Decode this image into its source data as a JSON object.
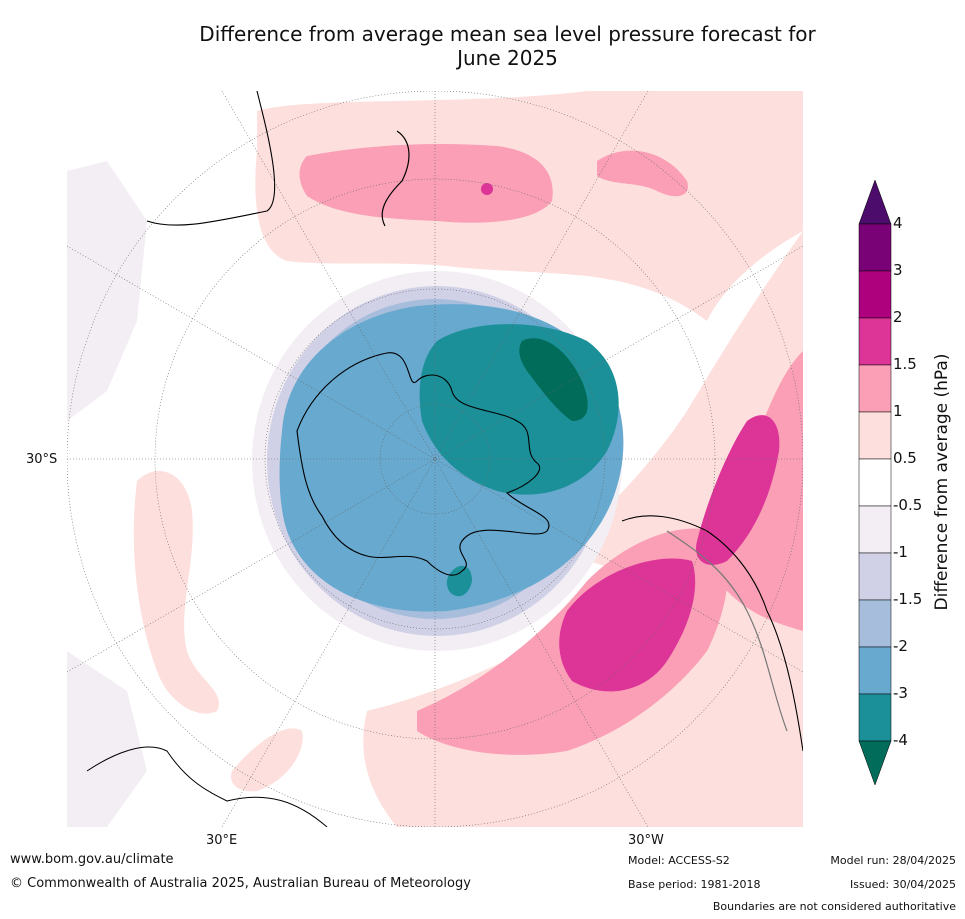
{
  "title_line1": "Difference from average mean sea level pressure forecast for",
  "title_line2": "June 2025",
  "axis_labels": {
    "lat": "30°S",
    "lon_east": "30°E",
    "lon_west": "30°W"
  },
  "colorbar": {
    "title": "Difference from average (hPa)",
    "ticks": [
      "4",
      "3",
      "2",
      "1.5",
      "1",
      "0.5",
      "-0.5",
      "-1",
      "-1.5",
      "-2",
      "-3",
      "-4"
    ],
    "colors": [
      "#4b0c6b",
      "#7a0277",
      "#ae017e",
      "#dd3497",
      "#fa9fb5",
      "#fde0dd",
      "#ffffff",
      "#f3eef4",
      "#d0d1e6",
      "#a6bddb",
      "#67a9cf",
      "#1c9099",
      "#016c59"
    ]
  },
  "footer": {
    "website": "www.bom.gov.au/climate",
    "copyright": "© Commonwealth of Australia 2025, Australian Bureau of Meteorology",
    "model": "Model: ACCESS-S2",
    "base_period": "Base period: 1981-2018",
    "model_run": "Model run: 28/04/2025",
    "issued": "Issued: 30/04/2025",
    "disclaimer": "Boundaries are not considered authoritative"
  }
}
